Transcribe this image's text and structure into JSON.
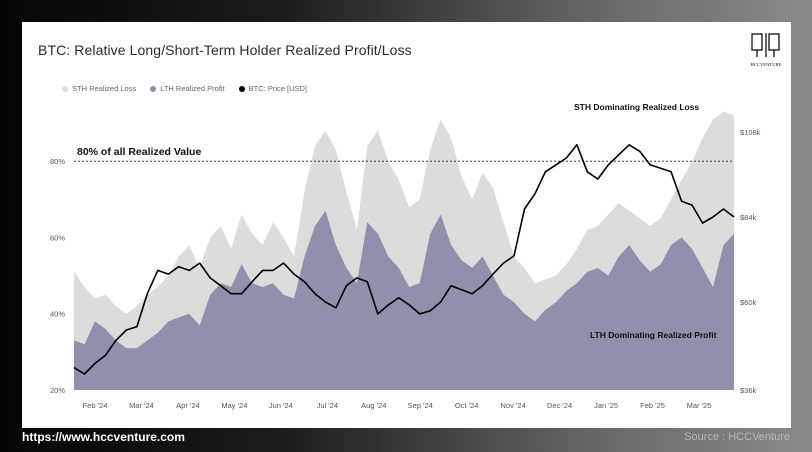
{
  "title": "BTC: Relative Long/Short-Term Holder Realized Profit/Loss",
  "logo_text": "HCCVENTURE",
  "footer": {
    "url": "https://www.hccventure.com",
    "source": "Source : HCCVenture"
  },
  "colors": {
    "sth": "#dcdcdc",
    "lth": "#8e90ac",
    "price": "#000000"
  },
  "annotations": {
    "threshold_label": "80% of all Realized Value",
    "top_label": "STH Dominating Realized Loss",
    "bottom_label": "LTH Dominating Realized Profit"
  },
  "chart_data": {
    "type": "area",
    "x_start": "2024-01-15",
    "x_end": "2025-03-31",
    "x_tick_labels": [
      "Feb '24",
      "Mar '24",
      "Apr '24",
      "May '24",
      "Jun '24",
      "Jul '24",
      "Aug '24",
      "Sep '24",
      "Oct '24",
      "Nov '24",
      "Dec '24",
      "Jan '25",
      "Feb '25",
      "Mar '25"
    ],
    "y_left_ticks": [
      "20%",
      "40%",
      "60%",
      "80%"
    ],
    "y_left_values": [
      20,
      40,
      60,
      80
    ],
    "y_left_range": [
      20,
      95
    ],
    "y_right_ticks": [
      "$36k",
      "$60k",
      "$84k",
      "$108k"
    ],
    "y_right_values": [
      36000,
      60000,
      84000,
      108000
    ],
    "threshold_pct": 80,
    "legend": [
      "STH Realized Loss",
      "LTH Realized Profit",
      "BTC: Price [USD]"
    ],
    "series": [
      {
        "name": "STH Realized Loss",
        "x": [
          "2024-01-15",
          "2024-01-22",
          "2024-01-29",
          "2024-02-05",
          "2024-02-12",
          "2024-02-19",
          "2024-02-26",
          "2024-03-04",
          "2024-03-11",
          "2024-03-18",
          "2024-03-25",
          "2024-04-01",
          "2024-04-08",
          "2024-04-15",
          "2024-04-22",
          "2024-04-29",
          "2024-05-06",
          "2024-05-13",
          "2024-05-20",
          "2024-05-27",
          "2024-06-03",
          "2024-06-10",
          "2024-06-17",
          "2024-06-24",
          "2024-07-01",
          "2024-07-08",
          "2024-07-15",
          "2024-07-22",
          "2024-07-29",
          "2024-08-05",
          "2024-08-12",
          "2024-08-19",
          "2024-08-26",
          "2024-09-02",
          "2024-09-09",
          "2024-09-16",
          "2024-09-23",
          "2024-09-30",
          "2024-10-07",
          "2024-10-14",
          "2024-10-21",
          "2024-10-28",
          "2024-11-04",
          "2024-11-11",
          "2024-11-18",
          "2024-11-25",
          "2024-12-02",
          "2024-12-09",
          "2024-12-16",
          "2024-12-23",
          "2024-12-30",
          "2025-01-06",
          "2025-01-13",
          "2025-01-20",
          "2025-01-27",
          "2025-02-03",
          "2025-02-10",
          "2025-02-17",
          "2025-02-24",
          "2025-03-03",
          "2025-03-10",
          "2025-03-17",
          "2025-03-24",
          "2025-03-31"
        ],
        "values": [
          51,
          47,
          44,
          45,
          42,
          40,
          42,
          45,
          47,
          50,
          55,
          58,
          52,
          60,
          63,
          57,
          66,
          61,
          58,
          64,
          60,
          55,
          72,
          84,
          88,
          83,
          72,
          62,
          84,
          88,
          80,
          75,
          68,
          70,
          83,
          91,
          86,
          76,
          70,
          77,
          73,
          64,
          55,
          52,
          48,
          49,
          50,
          53,
          57,
          62,
          63,
          66,
          69,
          67,
          65,
          63,
          65,
          70,
          75,
          80,
          86,
          91,
          93,
          92
        ]
      },
      {
        "name": "LTH Realized Profit",
        "x": [
          "2024-01-15",
          "2024-01-22",
          "2024-01-29",
          "2024-02-05",
          "2024-02-12",
          "2024-02-19",
          "2024-02-26",
          "2024-03-04",
          "2024-03-11",
          "2024-03-18",
          "2024-03-25",
          "2024-04-01",
          "2024-04-08",
          "2024-04-15",
          "2024-04-22",
          "2024-04-29",
          "2024-05-06",
          "2024-05-13",
          "2024-05-20",
          "2024-05-27",
          "2024-06-03",
          "2024-06-10",
          "2024-06-17",
          "2024-06-24",
          "2024-07-01",
          "2024-07-08",
          "2024-07-15",
          "2024-07-22",
          "2024-07-29",
          "2024-08-05",
          "2024-08-12",
          "2024-08-19",
          "2024-08-26",
          "2024-09-02",
          "2024-09-09",
          "2024-09-16",
          "2024-09-23",
          "2024-09-30",
          "2024-10-07",
          "2024-10-14",
          "2024-10-21",
          "2024-10-28",
          "2024-11-04",
          "2024-11-11",
          "2024-11-18",
          "2024-11-25",
          "2024-12-02",
          "2024-12-09",
          "2024-12-16",
          "2024-12-23",
          "2024-12-30",
          "2025-01-06",
          "2025-01-13",
          "2025-01-20",
          "2025-01-27",
          "2025-02-03",
          "2025-02-10",
          "2025-02-17",
          "2025-02-24",
          "2025-03-03",
          "2025-03-10",
          "2025-03-17",
          "2025-03-24",
          "2025-03-31"
        ],
        "values": [
          33,
          32,
          38,
          36,
          33,
          31,
          31,
          33,
          35,
          38,
          39,
          40,
          37,
          45,
          48,
          47,
          53,
          48,
          47,
          48,
          45,
          44,
          55,
          63,
          67,
          58,
          52,
          48,
          64,
          61,
          55,
          52,
          47,
          48,
          61,
          66,
          58,
          54,
          52,
          55,
          50,
          45,
          43,
          40,
          38,
          41,
          43,
          46,
          48,
          51,
          52,
          50,
          55,
          58,
          54,
          51,
          53,
          58,
          60,
          57,
          52,
          47,
          58,
          61
        ]
      },
      {
        "name": "BTC: Price [USD]",
        "x": [
          "2024-01-15",
          "2024-01-22",
          "2024-01-29",
          "2024-02-05",
          "2024-02-12",
          "2024-02-19",
          "2024-02-26",
          "2024-03-04",
          "2024-03-11",
          "2024-03-18",
          "2024-03-25",
          "2024-04-01",
          "2024-04-08",
          "2024-04-15",
          "2024-04-22",
          "2024-04-29",
          "2024-05-06",
          "2024-05-13",
          "2024-05-20",
          "2024-05-27",
          "2024-06-03",
          "2024-06-10",
          "2024-06-17",
          "2024-06-24",
          "2024-07-01",
          "2024-07-08",
          "2024-07-15",
          "2024-07-22",
          "2024-07-29",
          "2024-08-05",
          "2024-08-12",
          "2024-08-19",
          "2024-08-26",
          "2024-09-02",
          "2024-09-09",
          "2024-09-16",
          "2024-09-23",
          "2024-09-30",
          "2024-10-07",
          "2024-10-14",
          "2024-10-21",
          "2024-10-28",
          "2024-11-04",
          "2024-11-11",
          "2024-11-18",
          "2024-11-25",
          "2024-12-02",
          "2024-12-09",
          "2024-12-16",
          "2024-12-23",
          "2024-12-30",
          "2025-01-06",
          "2025-01-13",
          "2025-01-20",
          "2025-01-27",
          "2025-02-03",
          "2025-02-10",
          "2025-02-17",
          "2025-02-24",
          "2025-03-03",
          "2025-03-10",
          "2025-03-17",
          "2025-03-24",
          "2025-03-31"
        ],
        "values": [
          41000,
          39500,
          42000,
          44000,
          48000,
          51000,
          52000,
          62000,
          68000,
          67000,
          69000,
          68000,
          70000,
          66000,
          64000,
          62000,
          62000,
          65000,
          68000,
          68000,
          70000,
          67000,
          65000,
          62000,
          60000,
          58000,
          64000,
          66000,
          65000,
          56000,
          59000,
          61000,
          59000,
          56000,
          57000,
          60000,
          64000,
          63000,
          62000,
          64000,
          67000,
          70000,
          72000,
          86000,
          90000,
          96000,
          98000,
          100000,
          104000,
          96000,
          94000,
          98000,
          101000,
          104000,
          102000,
          98000,
          97000,
          96000,
          88000,
          87000,
          82000,
          84000,
          86000,
          84000
        ]
      }
    ]
  }
}
